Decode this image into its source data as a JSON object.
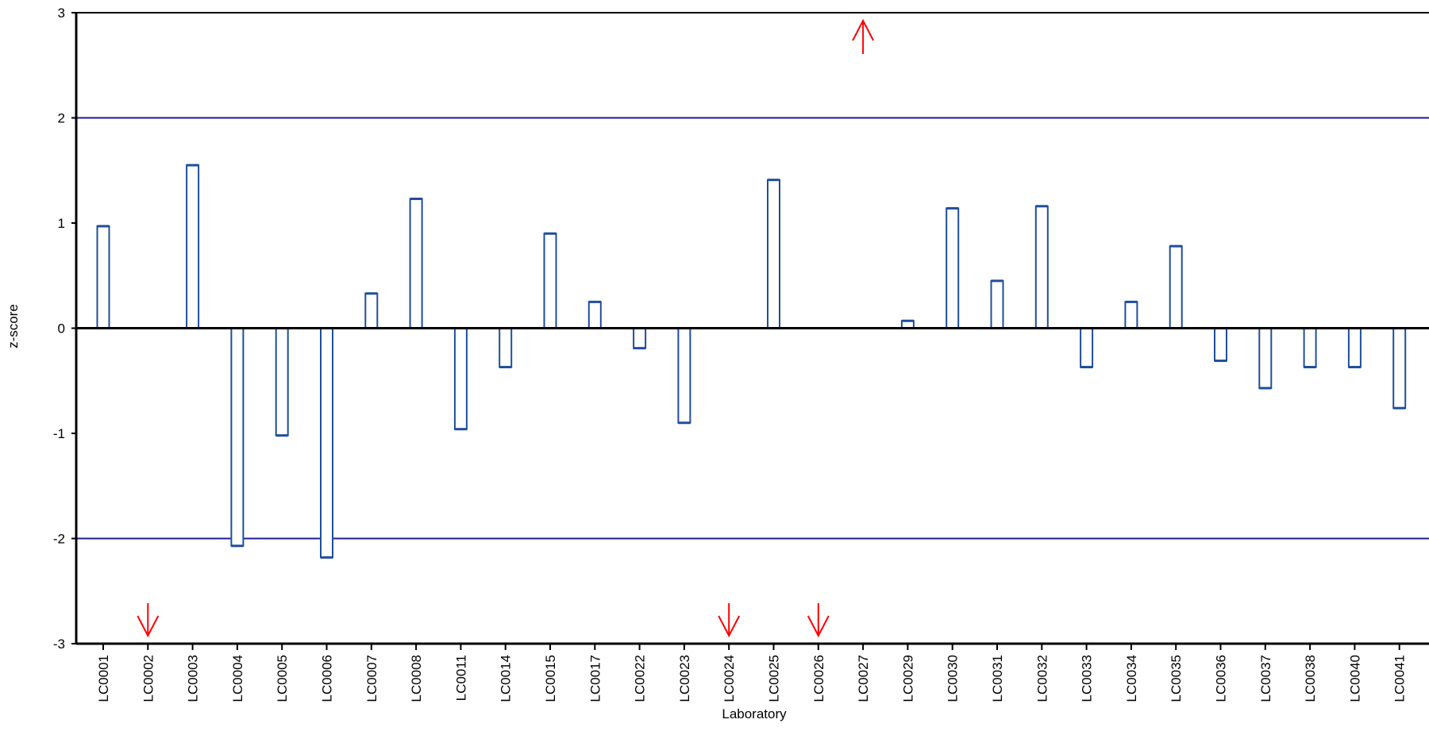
{
  "chart_data": {
    "type": "bar",
    "xlabel": "Laboratory",
    "ylabel": "z-score",
    "ylim": [
      -3,
      3
    ],
    "yticks": [
      "3",
      "2",
      "1",
      "0",
      "-1",
      "-2",
      "-3"
    ],
    "grid": false,
    "limit_lines": [
      2,
      -2
    ],
    "categories": [
      "LC0001",
      "LC0002",
      "LC0003",
      "LC0004",
      "LC0005",
      "LC0006",
      "LC0007",
      "LC0008",
      "LC0011",
      "LC0014",
      "LC0015",
      "LC0017",
      "LC0022",
      "LC0023",
      "LC0024",
      "LC0025",
      "LC0026",
      "LC0027",
      "LC0029",
      "LC0030",
      "LC0031",
      "LC0032",
      "LC0033",
      "LC0034",
      "LC0035",
      "LC0036",
      "LC0037",
      "LC0038",
      "LC0040",
      "LC0041"
    ],
    "values": [
      0.97,
      null,
      1.55,
      -2.07,
      -1.02,
      -2.18,
      0.33,
      1.23,
      -0.96,
      -0.37,
      0.9,
      0.25,
      -0.19,
      -0.9,
      null,
      1.41,
      null,
      null,
      0.07,
      1.14,
      0.45,
      1.16,
      -0.37,
      0.25,
      0.78,
      -0.31,
      -0.57,
      -0.37,
      -0.37,
      -0.76
    ],
    "out_of_range": [
      {
        "category": "LC0002",
        "direction": "below"
      },
      {
        "category": "LC0024",
        "direction": "below"
      },
      {
        "category": "LC0026",
        "direction": "below"
      },
      {
        "category": "LC0027",
        "direction": "above"
      }
    ],
    "colors": {
      "bar_edge": "#1f4e9a",
      "limit_line": "#1c1c96",
      "arrow": "#ff0000",
      "axis": "#000000"
    }
  }
}
